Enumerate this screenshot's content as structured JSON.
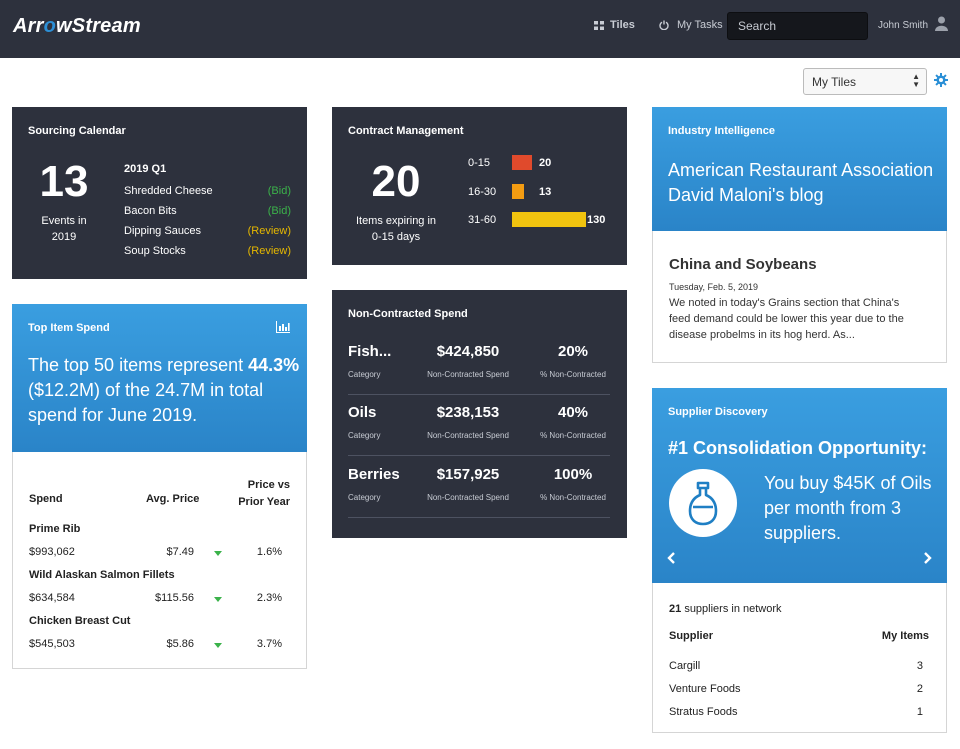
{
  "header": {
    "logo": "ArrowStream",
    "logo_pre": "Arr",
    "logo_o": "o",
    "logo_post": "wStream",
    "tiles_label": "Tiles",
    "tasks_label": "My Tasks",
    "search_placeholder": "Search",
    "user_name": "John Smith"
  },
  "toolbar": {
    "tiles_select": "My Tiles"
  },
  "colors": {
    "dark": "#2d313d",
    "blue": "#2a8fd6",
    "green": "#3bb24a",
    "yellow": "#e6b800",
    "red": "#e04a2c",
    "orange": "#f39c12",
    "gold": "#f1c40f"
  },
  "sourcing": {
    "title": "Sourcing Calendar",
    "count": "13",
    "label_line1": "Events in",
    "label_line2": "2019",
    "period": "2019 Q1",
    "items": [
      {
        "name": "Shredded Cheese",
        "status": "(Bid)"
      },
      {
        "name": "Bacon Bits",
        "status": "(Bid)"
      },
      {
        "name": "Dipping Sauces",
        "status": "(Review)"
      },
      {
        "name": "Soup Stocks",
        "status": "(Review)"
      }
    ]
  },
  "contract": {
    "title": "Contract Management",
    "count": "20",
    "label_line1": "Items expiring in",
    "label_line2": "0-15 days",
    "buckets": [
      {
        "range": "0-15",
        "value": 20
      },
      {
        "range": "16-30",
        "value": 13
      },
      {
        "range": "31-60",
        "value": 130
      }
    ]
  },
  "industry": {
    "title": "Industry Intelligence",
    "headline_line1": "American Restaurant Association",
    "headline_line2": "David Maloni's blog",
    "article_title": "China and Soybeans",
    "article_date": "Tuesday, Feb. 5, 2019",
    "article_line1": "We noted in today's Grains section that China's",
    "article_line2": "feed demand could be lower this year due to the",
    "article_line3": "disease probelms in its hog herd. As..."
  },
  "top_spend": {
    "title": "Top Item Spend",
    "summary_pre": "The top 50 items represent",
    "summary_bold": "44.3%",
    "summary_line2": "($12.2M) of the 24.7M in total",
    "summary_line3": "spend for June 2019.",
    "col_spend": "Spend",
    "col_avg": "Avg. Price",
    "col_prior_line1": "Price vs",
    "col_prior_line2": "Prior Year",
    "rows": [
      {
        "name": "Prime Rib",
        "spend": "$993,062",
        "avg": "$7.49",
        "change": "1.6%"
      },
      {
        "name": "Wild Alaskan Salmon Fillets",
        "spend": "$634,584",
        "avg": "$115.56",
        "change": "2.3%"
      },
      {
        "name": "Chicken Breast Cut",
        "spend": "$545,503",
        "avg": "$5.86",
        "change": "3.7%"
      }
    ]
  },
  "noncontracted": {
    "title": "Non-Contracted Spend",
    "cap_category": "Category",
    "cap_spend": "Non-Contracted Spend",
    "cap_pct": "% Non-Contracted",
    "rows": [
      {
        "name": "Fish...",
        "spend": "$424,850",
        "pct": "20%"
      },
      {
        "name": "Oils",
        "spend": "$238,153",
        "pct": "40%"
      },
      {
        "name": "Berries",
        "spend": "$157,925",
        "pct": "100%"
      }
    ]
  },
  "supplier": {
    "title": "Supplier Discovery",
    "headline": "#1 Consolidation Opportunity:",
    "msg_line1": "You buy $45K of Oils",
    "msg_line2": "per month from 3",
    "msg_line3": "suppliers.",
    "count": "21",
    "count_label": "suppliers in network",
    "col_supplier": "Supplier",
    "col_items": "My Items",
    "rows": [
      {
        "name": "Cargill",
        "items": "3"
      },
      {
        "name": "Venture Foods",
        "items": "2"
      },
      {
        "name": "Stratus Foods",
        "items": "1"
      }
    ]
  }
}
